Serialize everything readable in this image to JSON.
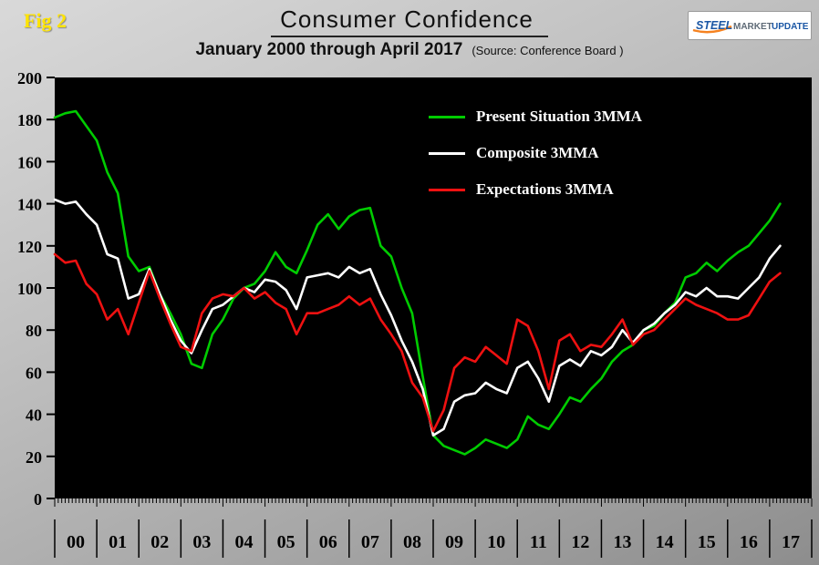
{
  "header": {
    "fig_label": "Fig 2",
    "title": "Consumer Confidence",
    "subtitle": "January 2000 through April 2017",
    "source": "(Source: Conference Board )",
    "logo": {
      "steel": "STEEL",
      "market": "MARKET",
      "update": "UPDATE"
    }
  },
  "colors": {
    "background_top": "#d9d9d9",
    "background_bottom": "#8d8d8d",
    "plot_background": "#000000",
    "fig_label": "#ffe400",
    "present_situation": "#00cc00",
    "composite": "#ffffff",
    "expectations": "#ee1111",
    "logo_blue": "#1b57a5",
    "logo_orange": "#f58220"
  },
  "chart_data": {
    "type": "line",
    "title": "Consumer Confidence",
    "subtitle": "January 2000 through April 2017",
    "source": "(Source: Conference Board )",
    "xlabel": "",
    "ylabel": "",
    "xlim": [
      2000,
      2018
    ],
    "ylim": [
      0,
      200
    ],
    "yticks": [
      0,
      20,
      40,
      60,
      80,
      100,
      120,
      140,
      160,
      180,
      200
    ],
    "year_labels": [
      "00",
      "01",
      "02",
      "03",
      "04",
      "05",
      "06",
      "07",
      "08",
      "09",
      "10",
      "11",
      "12",
      "13",
      "14",
      "15",
      "16",
      "17"
    ],
    "x_start": 2000.0,
    "x_step": 0.25,
    "grid": false,
    "plot_bg": "#000000",
    "legend_position": "top-center-inside",
    "series": [
      {
        "name": "Present Situation 3MMA",
        "color": "#00cc00",
        "values": [
          181,
          183,
          184,
          177,
          170,
          155,
          145,
          115,
          108,
          110,
          97,
          88,
          78,
          64,
          62,
          78,
          85,
          95,
          100,
          102,
          108,
          117,
          110,
          107,
          118,
          130,
          135,
          128,
          134,
          137,
          138,
          120,
          115,
          100,
          88,
          58,
          30,
          25,
          23,
          21,
          24,
          28,
          26,
          24,
          28,
          39,
          35,
          33,
          40,
          48,
          46,
          52,
          57,
          65,
          70,
          73,
          80,
          82,
          88,
          93,
          105,
          107,
          112,
          108,
          113,
          117,
          120,
          126,
          132,
          140
        ]
      },
      {
        "name": "Composite 3MMA",
        "color": "#ffffff",
        "values": [
          142,
          140,
          141,
          135,
          130,
          116,
          114,
          95,
          97,
          109,
          97,
          85,
          75,
          69,
          80,
          90,
          92,
          96,
          100,
          98,
          104,
          103,
          99,
          90,
          105,
          106,
          107,
          105,
          110,
          107,
          109,
          97,
          87,
          75,
          65,
          52,
          30,
          33,
          46,
          49,
          50,
          55,
          52,
          50,
          62,
          65,
          57,
          46,
          63,
          66,
          63,
          70,
          68,
          72,
          80,
          74,
          80,
          83,
          88,
          92,
          98,
          96,
          100,
          96,
          96,
          95,
          100,
          105,
          114,
          120
        ]
      },
      {
        "name": "Expectations 3MMA",
        "color": "#ee1111",
        "values": [
          116,
          112,
          113,
          102,
          97,
          85,
          90,
          78,
          93,
          108,
          95,
          83,
          72,
          70,
          88,
          95,
          97,
          96,
          100,
          95,
          98,
          93,
          90,
          78,
          88,
          88,
          90,
          92,
          96,
          92,
          95,
          85,
          78,
          70,
          55,
          48,
          32,
          42,
          62,
          67,
          65,
          72,
          68,
          64,
          85,
          82,
          70,
          52,
          75,
          78,
          70,
          73,
          72,
          78,
          85,
          73,
          78,
          80,
          85,
          90,
          95,
          92,
          90,
          88,
          85,
          85,
          87,
          95,
          103,
          107
        ]
      }
    ]
  }
}
